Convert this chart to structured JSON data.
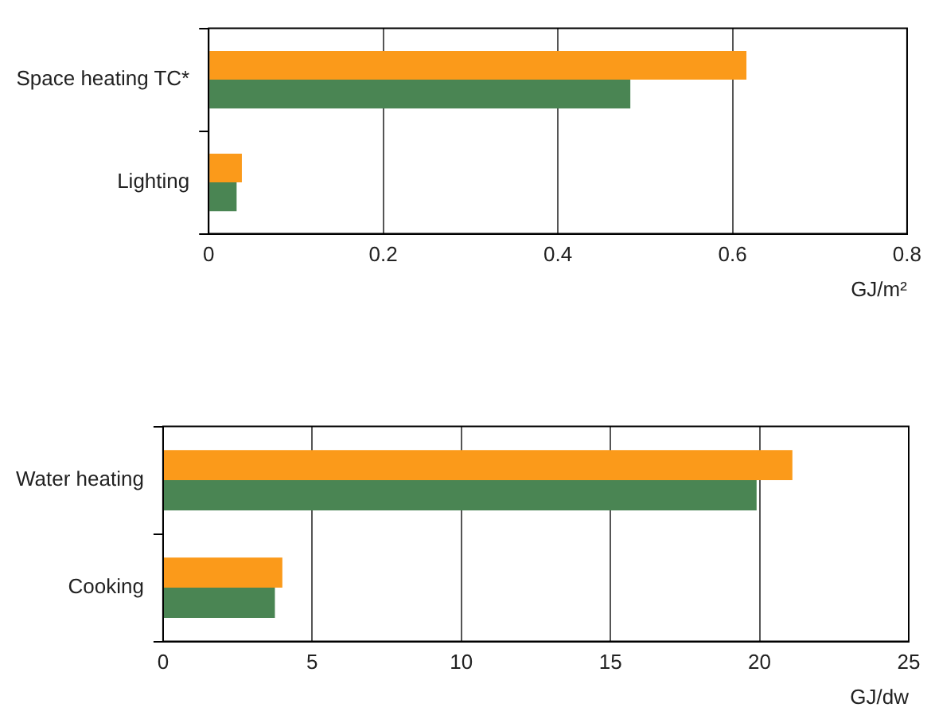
{
  "chart_data": [
    {
      "type": "bar",
      "orientation": "horizontal",
      "categories": [
        "Space heating TC*",
        "Lighting"
      ],
      "series": [
        {
          "color": "#fb9a1a",
          "values": [
            0.616,
            0.038
          ]
        },
        {
          "color": "#4a8553",
          "values": [
            0.483,
            0.032
          ]
        }
      ],
      "xlabel": "GJ/m²",
      "xlim": [
        0,
        0.8
      ],
      "xticks": [
        0,
        0.2,
        0.4,
        0.6,
        0.8
      ],
      "grid": "x",
      "legend": false
    },
    {
      "type": "bar",
      "orientation": "horizontal",
      "categories": [
        "Water heating",
        "Cooking"
      ],
      "series": [
        {
          "color": "#fb9a1a",
          "values": [
            21.1,
            4.0
          ]
        },
        {
          "color": "#4a8553",
          "values": [
            19.9,
            3.75
          ]
        }
      ],
      "xlabel": "GJ/dw",
      "xlim": [
        0,
        25
      ],
      "xticks": [
        0,
        5,
        10,
        15,
        20,
        25
      ],
      "grid": "x",
      "legend": false
    }
  ]
}
